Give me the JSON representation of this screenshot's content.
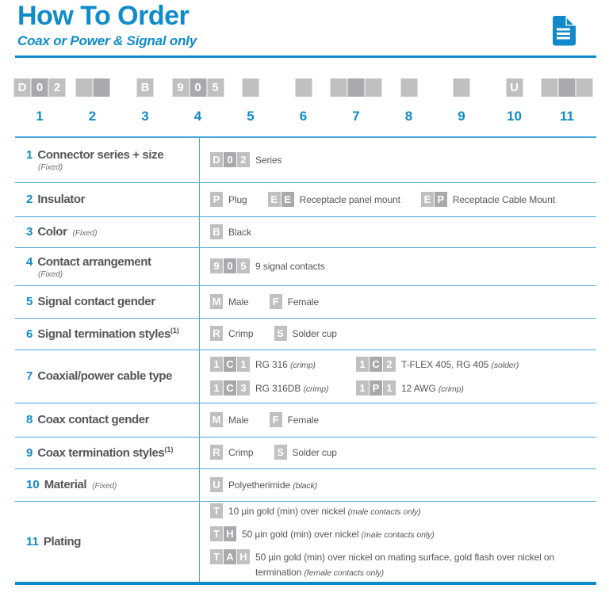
{
  "header": {
    "title": "How To Order",
    "subtitle": "Coax or Power & Signal only"
  },
  "icons": {
    "document": "document-icon"
  },
  "colors": {
    "accent": "#0f8bca",
    "line_light": "#4aa7da",
    "box_light": "#bec0c2",
    "box_dark": "#a7a9ac",
    "text_dark": "#55565a"
  },
  "part_number_row": {
    "positions": [
      {
        "num": "1",
        "boxes": [
          "D",
          "0",
          "2"
        ]
      },
      {
        "num": "2",
        "boxes": [
          "",
          ""
        ]
      },
      {
        "num": "3",
        "boxes": [
          "B"
        ]
      },
      {
        "num": "4",
        "boxes": [
          "9",
          "0",
          "5"
        ]
      },
      {
        "num": "5",
        "boxes": [
          ""
        ]
      },
      {
        "num": "6",
        "boxes": [
          ""
        ]
      },
      {
        "num": "7",
        "boxes": [
          "",
          "",
          ""
        ]
      },
      {
        "num": "8",
        "boxes": [
          ""
        ]
      },
      {
        "num": "9",
        "boxes": [
          ""
        ]
      },
      {
        "num": "10",
        "boxes": [
          "U"
        ]
      },
      {
        "num": "11",
        "boxes": [
          "",
          "",
          ""
        ]
      }
    ]
  },
  "table": {
    "rows": [
      {
        "num": "1",
        "label": "Connector series + size",
        "sup": "",
        "fixed": "(Fixed)",
        "fixed_placement": "below",
        "lines": [
          [
            {
              "code": [
                "D",
                "0",
                "2"
              ],
              "text": "Series",
              "note": ""
            }
          ]
        ]
      },
      {
        "num": "2",
        "label": "Insulator",
        "sup": "",
        "fixed": "",
        "fixed_placement": "",
        "lines": [
          [
            {
              "code": [
                "P"
              ],
              "text": "Plug",
              "note": ""
            },
            {
              "code": [
                "E",
                "E"
              ],
              "text": "Receptacle panel mount",
              "note": ""
            },
            {
              "code": [
                "E",
                "P"
              ],
              "text": "Receptacle Cable Mount",
              "note": ""
            }
          ]
        ]
      },
      {
        "num": "3",
        "label": "Color",
        "sup": "",
        "fixed": "(Fixed)",
        "fixed_placement": "inline",
        "lines": [
          [
            {
              "code": [
                "B"
              ],
              "text": "Black",
              "note": ""
            }
          ]
        ]
      },
      {
        "num": "4",
        "label": "Contact arrangement",
        "sup": "",
        "fixed": "(Fixed)",
        "fixed_placement": "below",
        "lines": [
          [
            {
              "code": [
                "9",
                "0",
                "5"
              ],
              "text": "9 signal contacts",
              "note": ""
            }
          ]
        ]
      },
      {
        "num": "5",
        "label": "Signal contact gender",
        "sup": "",
        "fixed": "",
        "fixed_placement": "",
        "lines": [
          [
            {
              "code": [
                "M"
              ],
              "text": "Male",
              "note": ""
            },
            {
              "code": [
                "F"
              ],
              "text": "Female",
              "note": ""
            }
          ]
        ]
      },
      {
        "num": "6",
        "label": "Signal termination styles",
        "sup": "(1)",
        "fixed": "",
        "fixed_placement": "",
        "lines": [
          [
            {
              "code": [
                "R"
              ],
              "text": "Crimp",
              "note": ""
            },
            {
              "code": [
                "S"
              ],
              "text": "Solder cup",
              "note": ""
            }
          ]
        ]
      },
      {
        "num": "7",
        "label": "Coaxial/power cable type",
        "sup": "",
        "fixed": "",
        "fixed_placement": "",
        "lines": [
          [
            {
              "code": [
                "1",
                "C",
                "1"
              ],
              "text": "RG 316",
              "note": "(crimp)"
            },
            {
              "code": [
                "1",
                "C",
                "2"
              ],
              "text": "T-FLEX 405, RG 405",
              "note": "(solder)"
            }
          ],
          [
            {
              "code": [
                "1",
                "C",
                "3"
              ],
              "text": "RG 316DB",
              "note": "(crimp)"
            },
            {
              "code": [
                "1",
                "P",
                "1"
              ],
              "text": "12 AWG",
              "note": "(crimp)"
            }
          ]
        ]
      },
      {
        "num": "8",
        "label": "Coax contact gender",
        "sup": "",
        "fixed": "",
        "fixed_placement": "",
        "lines": [
          [
            {
              "code": [
                "M"
              ],
              "text": "Male",
              "note": ""
            },
            {
              "code": [
                "F"
              ],
              "text": "Female",
              "note": ""
            }
          ]
        ]
      },
      {
        "num": "9",
        "label": "Coax termination styles",
        "sup": "(1)",
        "fixed": "",
        "fixed_placement": "",
        "lines": [
          [
            {
              "code": [
                "R"
              ],
              "text": "Crimp",
              "note": ""
            },
            {
              "code": [
                "S"
              ],
              "text": "Solder cup",
              "note": ""
            }
          ]
        ]
      },
      {
        "num": "10",
        "label": "Material",
        "sup": "",
        "fixed": "(Fixed)",
        "fixed_placement": "inline",
        "lines": [
          [
            {
              "code": [
                "U"
              ],
              "text": "Polyetherimide",
              "note": "(black)"
            }
          ]
        ]
      },
      {
        "num": "11",
        "label": "Plating",
        "sup": "",
        "fixed": "",
        "fixed_placement": "",
        "lines": [
          [
            {
              "code": [
                "T"
              ],
              "text": "10 µin gold (min) over nickel",
              "note": "(male contacts only)"
            }
          ],
          [
            {
              "code": [
                "T",
                "H"
              ],
              "text": "50 µin gold (min) over nickel",
              "note": "(male contacts only)"
            }
          ],
          [
            {
              "code": [
                "T",
                "A",
                "H"
              ],
              "text": "50 µin gold (min) over nickel on mating surface, gold flash over nickel on termination",
              "note": "(female contacts only)"
            }
          ]
        ]
      }
    ]
  }
}
